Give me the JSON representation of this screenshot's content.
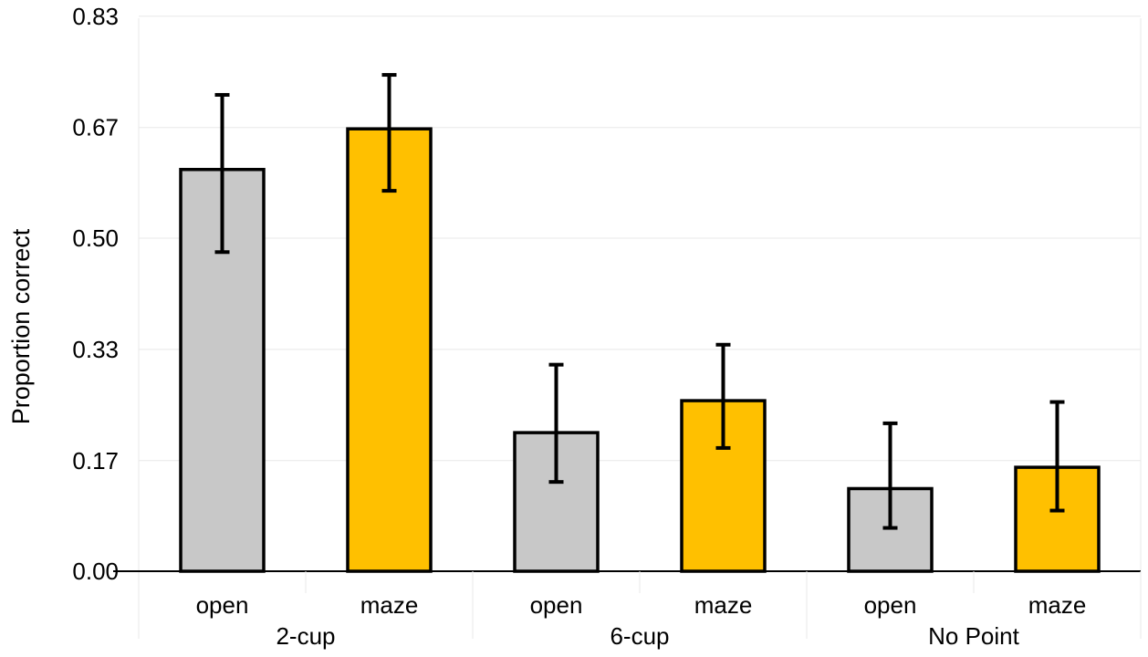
{
  "chart_data": {
    "type": "bar",
    "title": "",
    "ylabel": "Proportion correct",
    "xlabel": "",
    "ylim": [
      0,
      0.83
    ],
    "yticks": [
      "0.00",
      "0.17",
      "0.33",
      "0.50",
      "0.67",
      "0.83"
    ],
    "ytick_values": [
      0,
      0.166,
      0.333,
      0.5,
      0.666,
      0.833
    ],
    "groups": [
      "2-cup",
      "6-cup",
      "No Point"
    ],
    "categories": [
      "open",
      "maze",
      "open",
      "maze",
      "open",
      "maze"
    ],
    "values": [
      0.603,
      0.664,
      0.208,
      0.256,
      0.124,
      0.156
    ],
    "error_low": [
      0.479,
      0.571,
      0.134,
      0.185,
      0.065,
      0.091
    ],
    "error_high": [
      0.715,
      0.745,
      0.31,
      0.34,
      0.222,
      0.254
    ],
    "grid": true,
    "colors": {
      "open": "#c8c8c8",
      "maze": "#ffc000",
      "stroke": "#000000",
      "grid": "#e8e8e8"
    }
  }
}
